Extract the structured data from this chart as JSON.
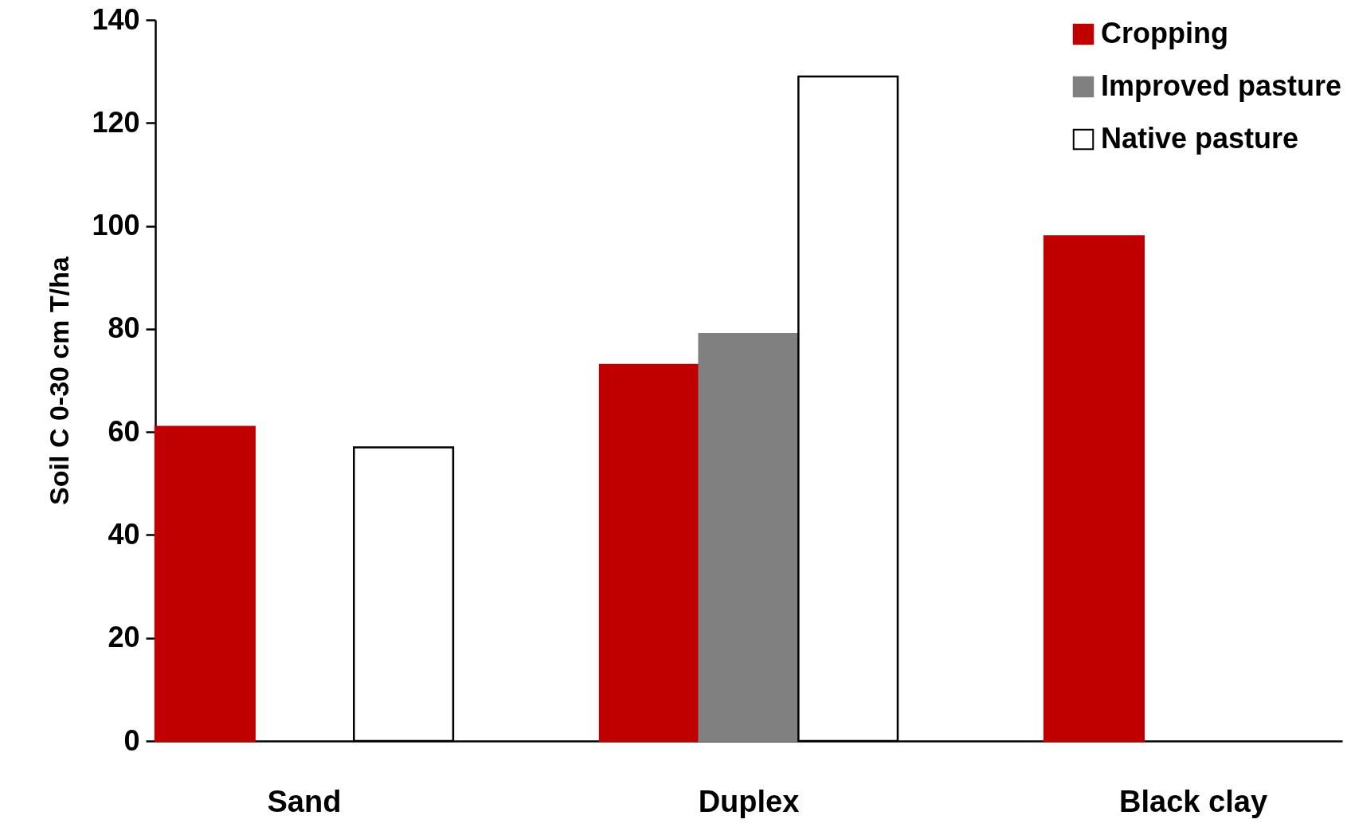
{
  "chart_data": {
    "type": "bar",
    "ylabel": "Soil C 0-30 cm T/ha",
    "categories": [
      "Sand",
      "Duplex",
      "Black clay"
    ],
    "series": [
      {
        "name": "Cropping",
        "color": "#c00000",
        "values": [
          61,
          73,
          98
        ]
      },
      {
        "name": "Improved pasture",
        "color": "#808080",
        "values": [
          null,
          79,
          null
        ]
      },
      {
        "name": "Native pasture",
        "color": "#ffffff",
        "values": [
          57,
          129,
          null
        ]
      }
    ],
    "ylim": [
      0,
      140
    ],
    "yticks": [
      0,
      20,
      40,
      60,
      80,
      100,
      120,
      140
    ],
    "grid": false,
    "legend": "top right"
  }
}
